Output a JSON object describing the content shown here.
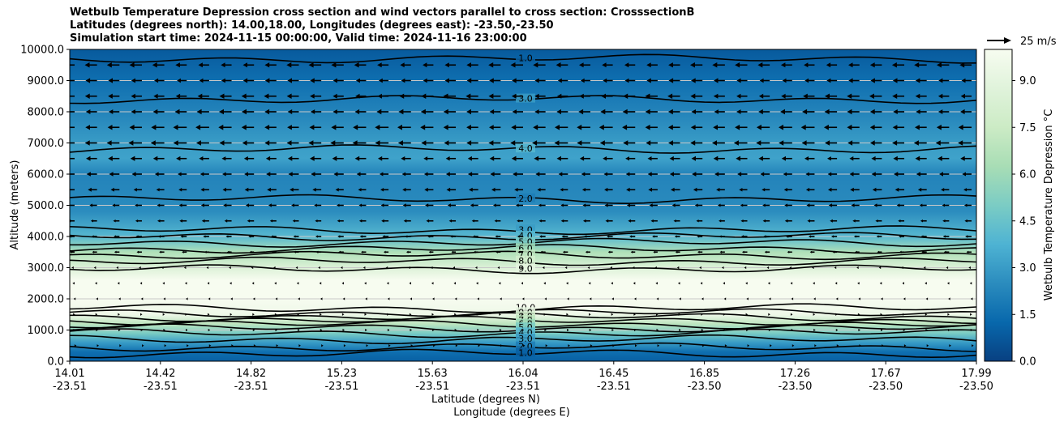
{
  "chart_data": {
    "type": "heatmap",
    "title_lines": [
      "Wetbulb Temperature Depression cross section and wind vectors parallel to cross section: CrosssectionB",
      "Latitudes (degrees north): 14.00,18.00, Longitudes (degrees east): -23.50,-23.50",
      "Simulation start time: 2024-11-15 00:00:00, Valid time: 2024-11-16 23:00:00"
    ],
    "ylabel": "Altitude (meters)",
    "xlabel_lat": "Latitude (degrees N)",
    "xlabel_lon": "Longitude (degrees E)",
    "ylim": [
      0,
      10000
    ],
    "y_ticks": [
      "0.0",
      "1000.0",
      "2000.0",
      "3000.0",
      "4000.0",
      "5000.0",
      "6000.0",
      "7000.0",
      "8000.0",
      "9000.0",
      "10000.0"
    ],
    "x_ticks": [
      {
        "lat": "14.01",
        "lon": "-23.51"
      },
      {
        "lat": "14.42",
        "lon": "-23.51"
      },
      {
        "lat": "14.82",
        "lon": "-23.51"
      },
      {
        "lat": "15.23",
        "lon": "-23.51"
      },
      {
        "lat": "15.63",
        "lon": "-23.51"
      },
      {
        "lat": "16.04",
        "lon": "-23.51"
      },
      {
        "lat": "16.45",
        "lon": "-23.51"
      },
      {
        "lat": "16.85",
        "lon": "-23.50"
      },
      {
        "lat": "17.26",
        "lon": "-23.50"
      },
      {
        "lat": "17.67",
        "lon": "-23.50"
      },
      {
        "lat": "17.99",
        "lon": "-23.50"
      }
    ],
    "grid": "horizontal",
    "colorbar": {
      "label": "Wetbulb Temperature Depression °C",
      "range": [
        0,
        10
      ],
      "tick_labels": [
        "0.0",
        "1.5",
        "3.0",
        "4.5",
        "6.0",
        "7.5",
        "9.0"
      ],
      "palette": [
        "#084081",
        "#0868ac",
        "#2b8cbe",
        "#4eb3d3",
        "#7bccc4",
        "#a8ddb5",
        "#ccebc5",
        "#e0f3db",
        "#f7fcf0"
      ]
    },
    "quiver_key": {
      "label": "25 m/s",
      "speed": 25
    },
    "depression_profile": [
      {
        "z": 0,
        "d": 1.0
      },
      {
        "z": 300,
        "d": 1.5
      },
      {
        "z": 600,
        "d": 3.0
      },
      {
        "z": 900,
        "d": 5.0
      },
      {
        "z": 1200,
        "d": 7.0
      },
      {
        "z": 1500,
        "d": 9.5
      },
      {
        "z": 2000,
        "d": 10.0
      },
      {
        "z": 2600,
        "d": 10.0
      },
      {
        "z": 3000,
        "d": 8.5
      },
      {
        "z": 3500,
        "d": 6.5
      },
      {
        "z": 4000,
        "d": 4.0
      },
      {
        "z": 4800,
        "d": 2.5
      },
      {
        "z": 6000,
        "d": 2.2
      },
      {
        "z": 6500,
        "d": 3.2
      },
      {
        "z": 7000,
        "d": 3.0
      },
      {
        "z": 8000,
        "d": 2.2
      },
      {
        "z": 9000,
        "d": 1.5
      },
      {
        "z": 10000,
        "d": 0.8
      }
    ],
    "contour_levels": [
      {
        "level": "1.0",
        "z": 9700
      },
      {
        "level": "3.0",
        "z": 8400
      },
      {
        "level": "4.0",
        "z": 6800
      },
      {
        "level": "2.0",
        "z": 5200
      },
      {
        "level": "3.0",
        "z": 4200
      },
      {
        "level": "4.0",
        "z": 4000
      },
      {
        "level": "5.0",
        "z": 3800
      },
      {
        "level": "6.0",
        "z": 3600
      },
      {
        "level": "7.0",
        "z": 3400
      },
      {
        "level": "8.0",
        "z": 3200
      },
      {
        "level": "9.0",
        "z": 2950
      },
      {
        "level": "10.0",
        "z": 1700
      },
      {
        "level": "9.0",
        "z": 1550
      },
      {
        "level": "8.0",
        "z": 1420
      },
      {
        "level": "7.0",
        "z": 1300
      },
      {
        "level": "6.0",
        "z": 1180
      },
      {
        "level": "5.0",
        "z": 1060
      },
      {
        "level": "4.0",
        "z": 900
      },
      {
        "level": "3.0",
        "z": 700
      },
      {
        "level": "2.0",
        "z": 450
      },
      {
        "level": "1.0",
        "z": 250
      }
    ],
    "wind_profile": [
      {
        "z": 9500,
        "u": -12
      },
      {
        "z": 9000,
        "u": -11
      },
      {
        "z": 8500,
        "u": -12
      },
      {
        "z": 8000,
        "u": -12
      },
      {
        "z": 7500,
        "u": -13
      },
      {
        "z": 7000,
        "u": -13
      },
      {
        "z": 6500,
        "u": -11
      },
      {
        "z": 6000,
        "u": -10
      },
      {
        "z": 5500,
        "u": -9
      },
      {
        "z": 5000,
        "u": -8
      },
      {
        "z": 4500,
        "u": -7
      },
      {
        "z": 4000,
        "u": -6
      },
      {
        "z": 3500,
        "u": -5
      },
      {
        "z": 3000,
        "u": -3
      },
      {
        "z": 2500,
        "u": -2
      },
      {
        "z": 2000,
        "u": -1
      },
      {
        "z": 1500,
        "u": 0.5
      },
      {
        "z": 1000,
        "u": 1
      },
      {
        "z": 500,
        "u": 2
      }
    ]
  }
}
